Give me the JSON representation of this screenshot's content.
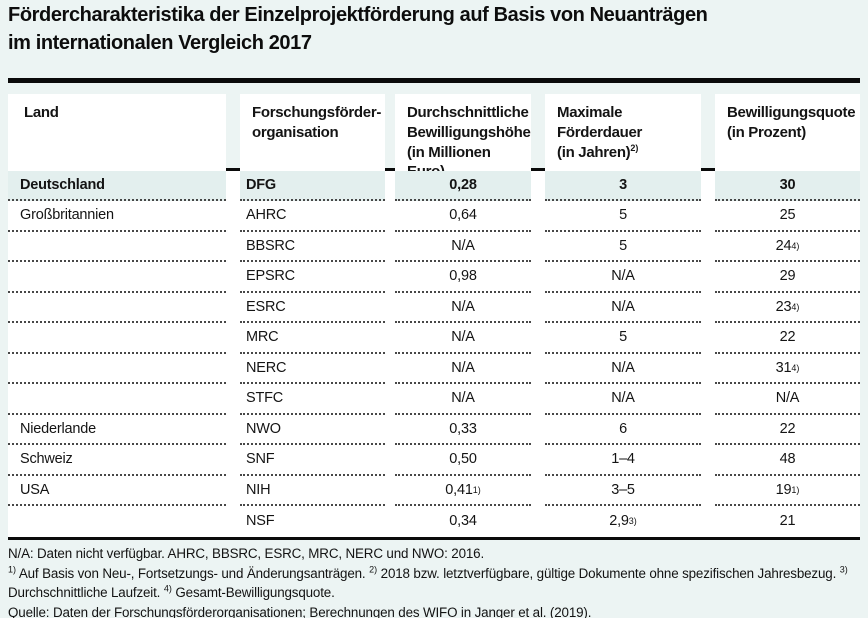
{
  "title": {
    "line1": "Fördercharakteristika der Einzelprojektförderung auf Basis von Neuanträgen",
    "line2": "im internationalen Vergleich 2017"
  },
  "colors": {
    "page_background": "#ecf4f3",
    "highlight_row_background": "#e3efee",
    "rule_color": "#0a0a0a",
    "text_color": "#141414"
  },
  "table": {
    "headers": {
      "land": "Land",
      "org": [
        "Forschungsförder-",
        "organisation"
      ],
      "amount": [
        "Durchschnittliche",
        "Bewilligungshöhe",
        "(in Millionen Euro)"
      ],
      "duration": {
        "line1": "Maximale Förderdauer",
        "line2": "(in Jahren)",
        "sup": "2)"
      },
      "quote": [
        "Bewilligungsquote",
        "(in Prozent)"
      ]
    },
    "rows": [
      {
        "land": "Deutschland",
        "org": "DFG",
        "amount": {
          "text": "0,28"
        },
        "duration": {
          "text": "3"
        },
        "quote": {
          "text": "30"
        }
      },
      {
        "land": "Großbritannien",
        "org": "AHRC",
        "amount": {
          "text": "0,64"
        },
        "duration": {
          "text": "5"
        },
        "quote": {
          "text": "25"
        }
      },
      {
        "land": "",
        "org": "BBSRC",
        "amount": {
          "text": "N/A"
        },
        "duration": {
          "text": "5"
        },
        "quote": {
          "text": "24",
          "sup": "4)"
        }
      },
      {
        "land": "",
        "org": "EPSRC",
        "amount": {
          "text": "0,98"
        },
        "duration": {
          "text": "N/A"
        },
        "quote": {
          "text": "29"
        }
      },
      {
        "land": "",
        "org": "ESRC",
        "amount": {
          "text": "N/A"
        },
        "duration": {
          "text": "N/A"
        },
        "quote": {
          "text": "23",
          "sup": "4)"
        }
      },
      {
        "land": "",
        "org": "MRC",
        "amount": {
          "text": "N/A"
        },
        "duration": {
          "text": "5"
        },
        "quote": {
          "text": "22"
        }
      },
      {
        "land": "",
        "org": "NERC",
        "amount": {
          "text": "N/A"
        },
        "duration": {
          "text": "N/A"
        },
        "quote": {
          "text": "31",
          "sup": "4)"
        }
      },
      {
        "land": "",
        "org": "STFC",
        "amount": {
          "text": "N/A"
        },
        "duration": {
          "text": "N/A"
        },
        "quote": {
          "text": "N/A"
        }
      },
      {
        "land": "Niederlande",
        "org": "NWO",
        "amount": {
          "text": "0,33"
        },
        "duration": {
          "text": "6"
        },
        "quote": {
          "text": "22"
        }
      },
      {
        "land": "Schweiz",
        "org": "SNF",
        "amount": {
          "text": "0,50"
        },
        "duration": {
          "text": "1–4"
        },
        "quote": {
          "text": "48"
        }
      },
      {
        "land": "USA",
        "org": "NIH",
        "amount": {
          "text": "0,41",
          "sup": "1)"
        },
        "duration": {
          "text": "3–5"
        },
        "quote": {
          "text": "19",
          "sup": "1)"
        }
      },
      {
        "land": "",
        "org": "NSF",
        "amount": {
          "text": "0,34"
        },
        "duration": {
          "text": "2,9",
          "sup": "3)"
        },
        "quote": {
          "text": "21"
        }
      }
    ]
  },
  "footnotes": {
    "na_line": "N/A: Daten nicht verfügbar. AHRC, BBSRC, ESRC, MRC, NERC und NWO: 2016.",
    "notes": [
      {
        "sup": "1)",
        "text": " Auf Basis von Neu-, Fortsetzungs- und Änderungsanträgen. "
      },
      {
        "sup": "2)",
        "text": " 2018 bzw. letztverfügbare, gültige Dokumente ohne spezifischen Jahresbezug. "
      },
      {
        "sup": "3)",
        "text": " Durchschnittliche Laufzeit. "
      },
      {
        "sup": "4)",
        "text": " Gesamt-Bewilligungsquote."
      }
    ],
    "source": "Quelle: Daten der Forschungsförderorganisationen; Berechnungen des WIFO in Janger et al. (2019)."
  }
}
